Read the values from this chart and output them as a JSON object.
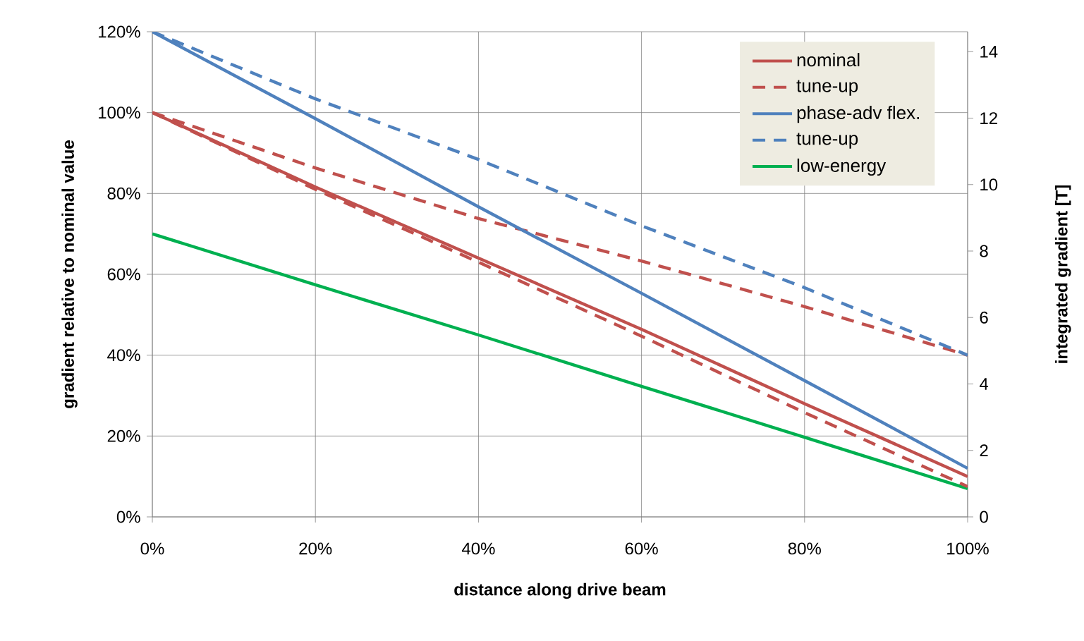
{
  "chart_data": {
    "type": "line",
    "xlabel": "distance along drive beam",
    "ylabel": "gradient relative to nominal value",
    "y2label": "integrated gradient [T]",
    "x": [
      0,
      20,
      40,
      60,
      80,
      100
    ],
    "series": [
      {
        "name": "nominal",
        "color": "#c0504d",
        "line_style": "solid",
        "values": [
          100,
          81.6,
          64,
          46.4,
          28,
          10
        ]
      },
      {
        "name": "tune-up",
        "color": "#c0504d",
        "line_style": "dashed",
        "values": [
          100,
          86.3,
          73.8,
          63.3,
          52,
          40
        ]
      },
      {
        "name": "phase-adv flex.",
        "color": "#4f81bd",
        "line_style": "solid",
        "values": [
          120,
          98.5,
          76.7,
          55.3,
          33.7,
          12
        ]
      },
      {
        "name": "tune-up",
        "color": "#4f81bd",
        "line_style": "dashed",
        "values": [
          120,
          103.4,
          88.4,
          72,
          56.7,
          40
        ]
      },
      {
        "name": "low-energy",
        "color": "#00b050",
        "line_style": "solid",
        "values": [
          70,
          57.4,
          45,
          32.3,
          19.7,
          7
        ]
      },
      {
        "color": "#c0504d",
        "line_style": "dashed",
        "values": [
          100,
          81,
          63,
          44.7,
          25.8,
          7.5
        ]
      }
    ],
    "xlim": [
      0,
      100
    ],
    "ylim": [
      0,
      120
    ],
    "y2lim": [
      0,
      14.6
    ],
    "xticks": [
      {
        "value": 0,
        "label": "0%"
      },
      {
        "value": 20,
        "label": "20%"
      },
      {
        "value": 40,
        "label": "40%"
      },
      {
        "value": 60,
        "label": "60%"
      },
      {
        "value": 80,
        "label": "80%"
      },
      {
        "value": 100,
        "label": "100%"
      }
    ],
    "yticks": [
      {
        "value": 0,
        "label": "0%"
      },
      {
        "value": 20,
        "label": "20%"
      },
      {
        "value": 40,
        "label": "40%"
      },
      {
        "value": 60,
        "label": "60%"
      },
      {
        "value": 80,
        "label": "80%"
      },
      {
        "value": 100,
        "label": "100%"
      },
      {
        "value": 120,
        "label": "120%"
      }
    ],
    "y2ticks": [
      0,
      2,
      4,
      6,
      8,
      10,
      12,
      14
    ],
    "grid": true,
    "legend": "top right",
    "marker": "none"
  }
}
